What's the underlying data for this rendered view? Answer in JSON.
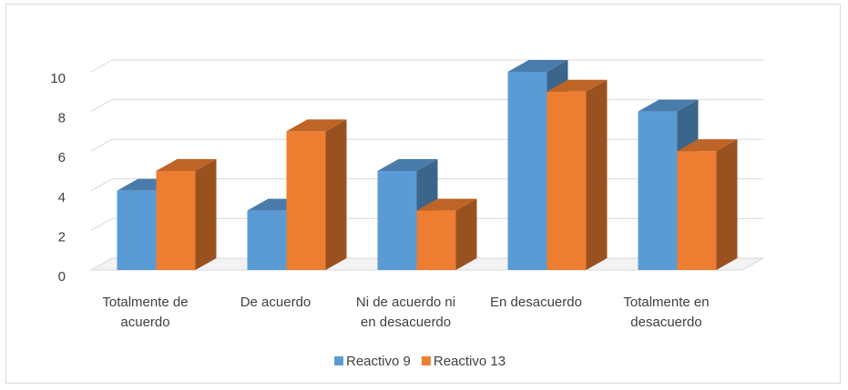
{
  "chart_data": {
    "type": "bar",
    "categories": [
      [
        "Totalmente de",
        "acuerdo"
      ],
      [
        "De acuerdo"
      ],
      [
        "Ni de acuerdo ni",
        "en desacuerdo"
      ],
      [
        "En desacuerdo"
      ],
      [
        "Totalmente en",
        "desacuerdo"
      ]
    ],
    "series": [
      {
        "name": "Reactivo 9",
        "values": [
          4,
          3,
          5,
          10,
          8
        ],
        "color": "#5B9BD5"
      },
      {
        "name": "Reactivo 13",
        "values": [
          5,
          7,
          3,
          9,
          6
        ],
        "color": "#ED7D31"
      }
    ],
    "yticks": [
      "0",
      "2",
      "4",
      "6",
      "8",
      "10"
    ],
    "ylim": [
      0,
      10
    ],
    "grid": true,
    "legend_position": "bottom",
    "style": "3d-clustered-column"
  }
}
